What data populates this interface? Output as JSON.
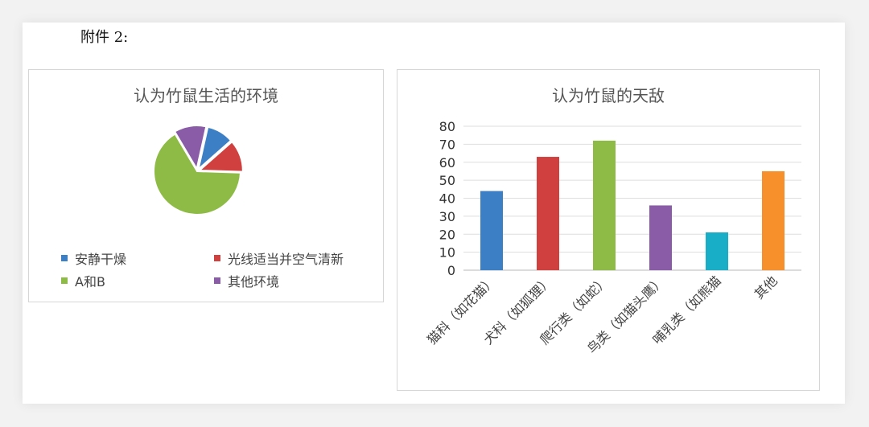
{
  "header": {
    "attachment_label": "附件 2:"
  },
  "chart_data": [
    {
      "type": "pie",
      "title": "认为竹鼠生活的环境",
      "categories": [
        "安静干燥",
        "光线适当并空气清新",
        "A和B",
        "其他环境"
      ],
      "values": [
        10,
        12,
        66,
        12
      ],
      "colors": [
        "#3d7fc4",
        "#d0403f",
        "#8dbb45",
        "#8a5ca8"
      ],
      "legend_position": "bottom",
      "grid": false
    },
    {
      "type": "bar",
      "title": "认为竹鼠的天敌",
      "categories": [
        "猫科（如花猫）",
        "犬科（如狐狸）",
        "爬行类（如蛇）",
        "鸟类（如猫头鹰）",
        "哺乳类（如熊猫",
        "其他"
      ],
      "values": [
        44,
        63,
        72,
        36,
        21,
        55
      ],
      "colors": [
        "#3d7fc4",
        "#d0403f",
        "#8dbb45",
        "#8a5ca8",
        "#18aec7",
        "#f7902a"
      ],
      "ylim": [
        0,
        80
      ],
      "yticks": [
        0,
        10,
        20,
        30,
        40,
        50,
        60,
        70,
        80
      ],
      "grid": true,
      "legend_position": "none"
    }
  ]
}
